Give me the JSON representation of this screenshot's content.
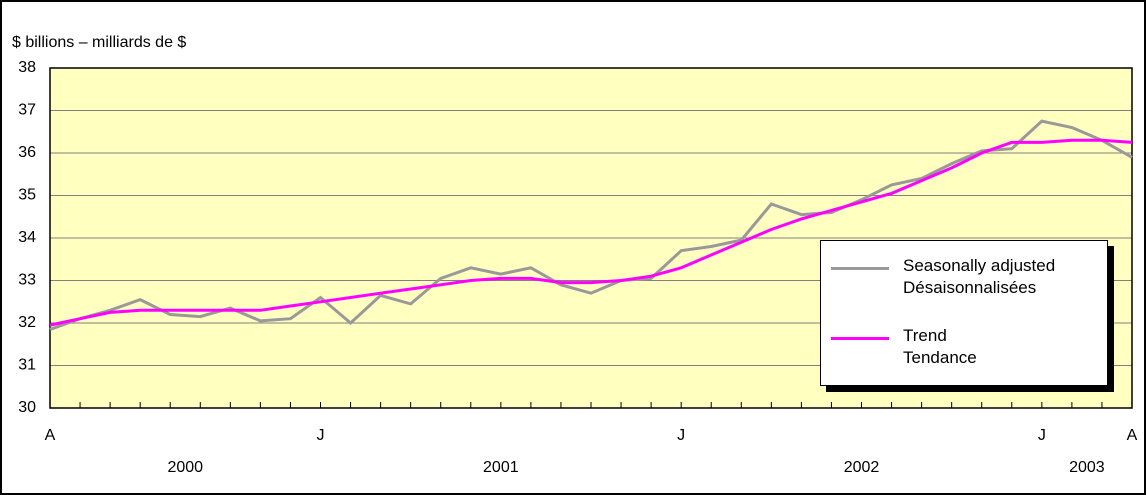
{
  "chart_data": {
    "type": "line",
    "y_label": "$ billions – milliards de $",
    "categories": [
      "A",
      null,
      null,
      null,
      null,
      null,
      null,
      null,
      null,
      "J",
      null,
      null,
      null,
      null,
      null,
      null,
      null,
      null,
      null,
      null,
      null,
      "J",
      null,
      null,
      null,
      null,
      null,
      null,
      null,
      null,
      null,
      null,
      null,
      "J",
      null,
      null,
      "A"
    ],
    "year_labels": [
      "2000",
      null,
      null,
      null,
      null,
      null,
      null,
      null,
      null,
      "2001",
      null,
      null,
      null,
      null,
      null,
      null,
      null,
      null,
      null,
      null,
      null,
      "2002",
      null,
      null,
      null,
      null,
      null,
      null,
      null,
      null,
      null,
      null,
      null,
      "2003",
      null,
      null,
      null
    ],
    "series": [
      {
        "name": "Seasonally adjusted\nDésaisonnalisées",
        "color": "#999999",
        "values": [
          31.85,
          32.1,
          32.3,
          32.55,
          32.2,
          32.15,
          32.35,
          32.05,
          32.1,
          32.6,
          32.0,
          32.65,
          32.45,
          33.05,
          33.3,
          33.15,
          33.3,
          32.9,
          32.7,
          33.0,
          33.05,
          33.7,
          33.8,
          33.95,
          34.8,
          34.55,
          34.6,
          34.9,
          35.25,
          35.4,
          35.75,
          36.05,
          36.1,
          36.75,
          36.6,
          36.3,
          35.9
        ]
      },
      {
        "name": "Trend\nTendance",
        "color": "#ff00ff",
        "values": [
          31.95,
          32.1,
          32.25,
          32.3,
          32.3,
          32.3,
          32.3,
          32.3,
          32.4,
          32.5,
          32.6,
          32.7,
          32.8,
          32.9,
          33.0,
          33.05,
          33.05,
          32.95,
          32.95,
          33.0,
          33.1,
          33.3,
          33.6,
          33.9,
          34.2,
          34.45,
          34.65,
          34.85,
          35.05,
          35.35,
          35.65,
          36.0,
          36.25,
          36.25,
          36.3,
          36.3,
          36.25
        ]
      }
    ],
    "ylim": [
      30,
      38
    ],
    "yticks": [
      30,
      31,
      32,
      33,
      34,
      35,
      36,
      37,
      38
    ],
    "grid": true,
    "plot_background": "#ffffc0"
  }
}
